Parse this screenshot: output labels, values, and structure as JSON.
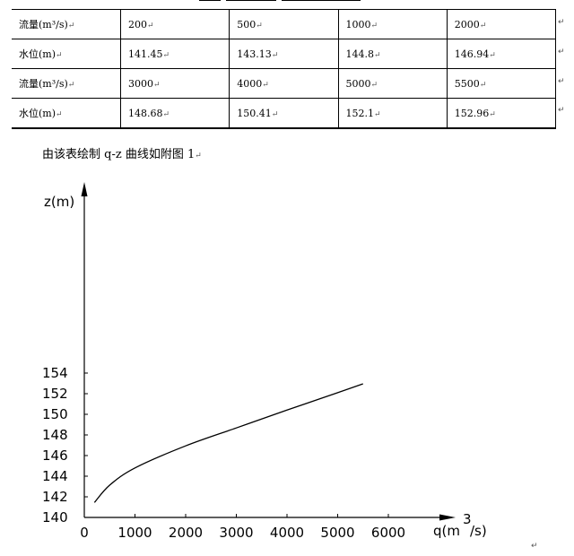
{
  "table": {
    "rows": [
      {
        "label": "流量(m³/s)",
        "cells": [
          "200",
          "500",
          "1000",
          "2000"
        ]
      },
      {
        "label": "水位(m)",
        "cells": [
          "141.45",
          "143.13",
          "144.8",
          "146.94"
        ]
      },
      {
        "label": "流量(m³/s)",
        "cells": [
          "3000",
          "4000",
          "5000",
          "5500"
        ]
      },
      {
        "label": "水位(m)",
        "cells": [
          "148.68",
          "150.41",
          "152.1",
          "152.96"
        ]
      }
    ],
    "paragraph_mark": "↵"
  },
  "caption": "由该表绘制 q-z 曲线如附图 1",
  "chart_data": {
    "type": "line",
    "xlabel": "q(m³/s)",
    "xlabel_main": "q(m",
    "xlabel_sup": "3",
    "xlabel_tail": "/s)",
    "ylabel": "z(m)",
    "xlim": [
      0,
      6000
    ],
    "ylim": [
      140,
      155
    ],
    "xticks": [
      "0",
      "1000",
      "2000",
      "3000",
      "4000",
      "5000",
      "6000"
    ],
    "yticks": [
      "140",
      "142",
      "144",
      "146",
      "148",
      "150",
      "152",
      "154"
    ],
    "xtick_values": [
      0,
      1000,
      2000,
      3000,
      4000,
      5000,
      6000
    ],
    "ytick_values": [
      140,
      142,
      144,
      146,
      148,
      150,
      152,
      154
    ],
    "series": [
      {
        "x": [
          200,
          500,
          1000,
          2000,
          3000,
          4000,
          5000,
          5500
        ],
        "y": [
          141.45,
          143.13,
          144.8,
          146.94,
          148.68,
          150.41,
          152.1,
          152.96
        ]
      }
    ],
    "grid": false
  }
}
